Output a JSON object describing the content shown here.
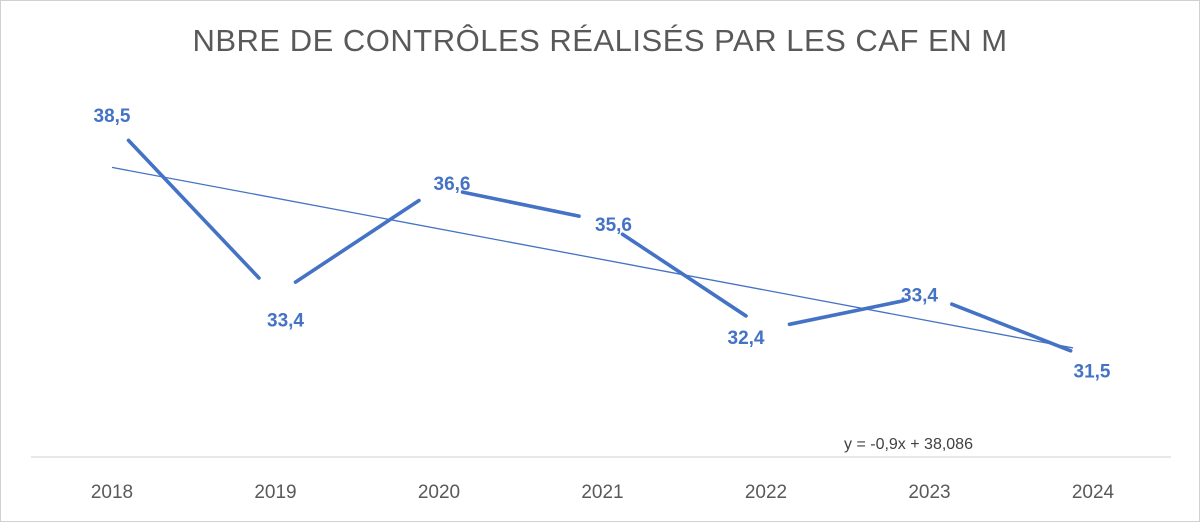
{
  "chart_data": {
    "type": "line",
    "title": "NBRE DE CONTRÔLES RÉALISÉS PAR LES CAF EN M",
    "categories": [
      "2018",
      "2019",
      "2020",
      "2021",
      "2022",
      "2023",
      "2024"
    ],
    "values": [
      38.5,
      33.4,
      36.6,
      35.6,
      32.4,
      33.4,
      31.5
    ],
    "data_labels": [
      "38,5",
      "33,4",
      "36,6",
      "35,6",
      "32,4",
      "33,4",
      "31,5"
    ],
    "trendline": {
      "type": "linear",
      "slope": -0.9,
      "intercept": 38.086,
      "equation": "y = -0,9x + 38,086"
    },
    "xlabel": "",
    "ylabel": "",
    "grid": false,
    "legend": "none",
    "colors": {
      "series": "#4472c4",
      "axis": "#d9d9d9",
      "tick_text": "#595959",
      "title": "#595959"
    }
  }
}
